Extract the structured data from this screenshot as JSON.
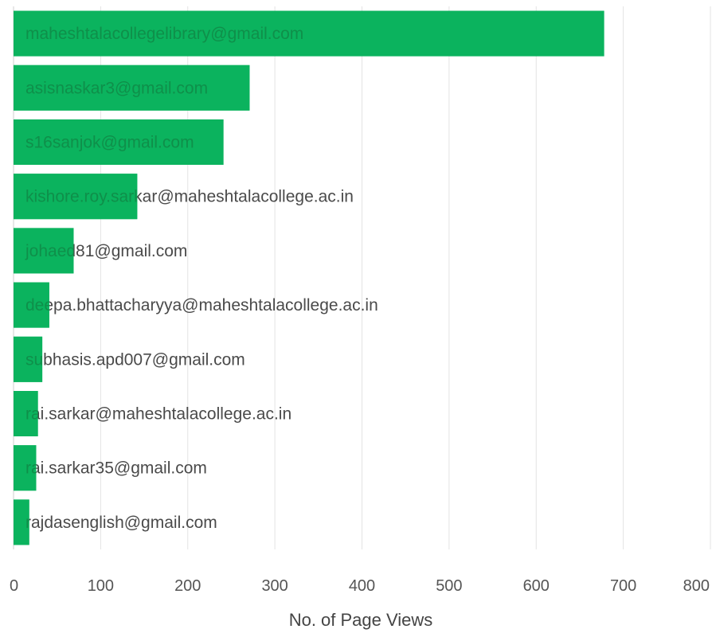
{
  "colors": {
    "bar": "#0bb35e",
    "label_on_bar": "#0f8f4a",
    "label_off_bar": "#4a4a4a",
    "grid": "#e3e3e3"
  },
  "chart_data": {
    "type": "bar",
    "orientation": "horizontal",
    "title": "",
    "xlabel": "No. of Page Views",
    "ylabel": "",
    "xlim": [
      0,
      800
    ],
    "xticks": [
      0,
      100,
      200,
      300,
      400,
      500,
      600,
      700,
      800
    ],
    "grid": true,
    "legend": "none",
    "categories": [
      "maheshtalacollegelibrary@gmail.com",
      "asisnaskar3@gmail.com",
      "s16sanjok@gmail.com",
      "kishore.roy.sarkar@maheshtalacollege.ac.in",
      "johaed81@gmail.com",
      "deepa.bhattacharyya@maheshtalacollege.ac.in",
      "subhasis.apd007@gmail.com",
      "rai.sarkar@maheshtalacollege.ac.in",
      "rai.sarkar35@gmail.com",
      "rajdasenglish@gmail.com"
    ],
    "values": [
      678,
      271,
      241,
      142,
      69,
      41,
      33,
      28,
      26,
      18
    ]
  }
}
